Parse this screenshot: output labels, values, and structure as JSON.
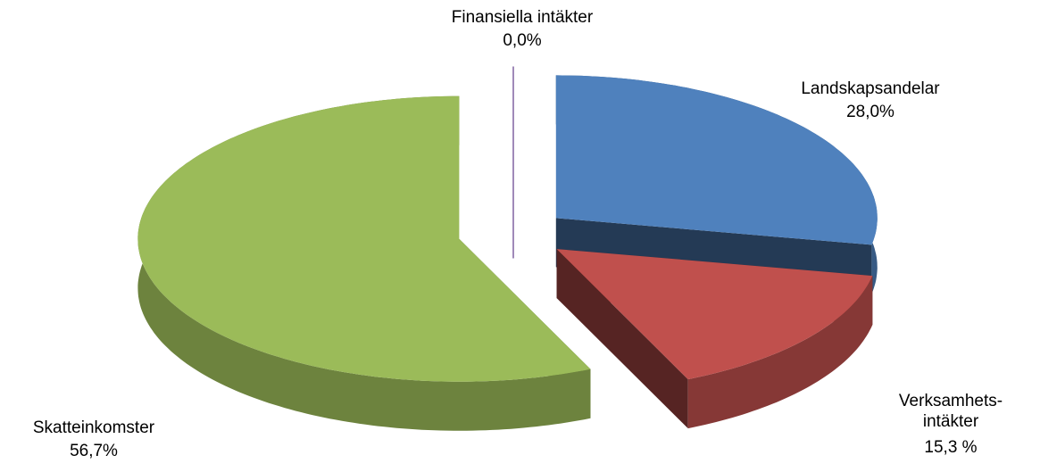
{
  "chart_data": {
    "type": "pie",
    "three_d": true,
    "exploded": true,
    "categories": [
      "Landskapsandelar",
      "Verksamhets-\nintäkter",
      "Skatteinkomster",
      "Finansiella intäkter"
    ],
    "values": [
      28.0,
      15.3,
      56.7,
      0.0
    ],
    "value_labels": [
      "28,0%",
      "15,3 %",
      "56,7%",
      "0,0%"
    ],
    "colors": [
      "#4f81bd",
      "#c0504d",
      "#9bbb59",
      "#8064a2"
    ]
  }
}
